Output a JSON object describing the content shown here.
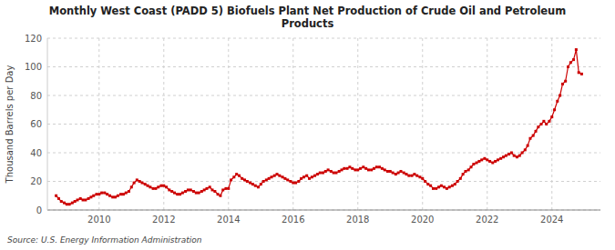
{
  "chart_data": {
    "type": "line",
    "title": "Monthly West Coast (PADD 5) Biofuels Plant Net Production of Crude Oil and Petroleum\nProducts",
    "y_label": "Thousand Barrels per Day",
    "annotations": [
      "Source: U.S. Energy Information Administration"
    ],
    "color": "#cc0000",
    "marker": "square",
    "line_style": "solid",
    "grid": true,
    "xlim": [
      2008.4,
      2025.5
    ],
    "xticks": [
      2010,
      2012,
      2014,
      2016,
      2018,
      2020,
      2022,
      2024
    ],
    "ylim": [
      0,
      120
    ],
    "yticks": [
      0,
      20,
      40,
      60,
      80,
      100,
      120
    ],
    "x": [
      2008.67,
      2008.75,
      2008.83,
      2008.92,
      2009.0,
      2009.08,
      2009.17,
      2009.25,
      2009.33,
      2009.42,
      2009.5,
      2009.58,
      2009.67,
      2009.75,
      2009.83,
      2009.92,
      2010.0,
      2010.08,
      2010.17,
      2010.25,
      2010.33,
      2010.42,
      2010.5,
      2010.58,
      2010.67,
      2010.75,
      2010.83,
      2010.92,
      2011.0,
      2011.08,
      2011.17,
      2011.25,
      2011.33,
      2011.42,
      2011.5,
      2011.58,
      2011.67,
      2011.75,
      2011.83,
      2011.92,
      2012.0,
      2012.08,
      2012.17,
      2012.25,
      2012.33,
      2012.42,
      2012.5,
      2012.58,
      2012.67,
      2012.75,
      2012.83,
      2012.92,
      2013.0,
      2013.08,
      2013.17,
      2013.25,
      2013.33,
      2013.42,
      2013.5,
      2013.58,
      2013.67,
      2013.75,
      2013.83,
      2013.92,
      2014.0,
      2014.08,
      2014.17,
      2014.25,
      2014.33,
      2014.42,
      2014.5,
      2014.58,
      2014.67,
      2014.75,
      2014.83,
      2014.92,
      2015.0,
      2015.08,
      2015.17,
      2015.25,
      2015.33,
      2015.42,
      2015.5,
      2015.58,
      2015.67,
      2015.75,
      2015.83,
      2015.92,
      2016.0,
      2016.08,
      2016.17,
      2016.25,
      2016.33,
      2016.42,
      2016.5,
      2016.58,
      2016.67,
      2016.75,
      2016.83,
      2016.92,
      2017.0,
      2017.08,
      2017.17,
      2017.25,
      2017.33,
      2017.42,
      2017.5,
      2017.58,
      2017.67,
      2017.75,
      2017.83,
      2017.92,
      2018.0,
      2018.08,
      2018.17,
      2018.25,
      2018.33,
      2018.42,
      2018.5,
      2018.58,
      2018.67,
      2018.75,
      2018.83,
      2018.92,
      2019.0,
      2019.08,
      2019.17,
      2019.25,
      2019.33,
      2019.42,
      2019.5,
      2019.58,
      2019.67,
      2019.75,
      2019.83,
      2019.92,
      2020.0,
      2020.08,
      2020.17,
      2020.25,
      2020.33,
      2020.42,
      2020.5,
      2020.58,
      2020.67,
      2020.75,
      2020.83,
      2020.92,
      2021.0,
      2021.08,
      2021.17,
      2021.25,
      2021.33,
      2021.42,
      2021.5,
      2021.58,
      2021.67,
      2021.75,
      2021.83,
      2021.92,
      2022.0,
      2022.08,
      2022.17,
      2022.25,
      2022.33,
      2022.42,
      2022.5,
      2022.58,
      2022.67,
      2022.75,
      2022.83,
      2022.92,
      2023.0,
      2023.08,
      2023.17,
      2023.25,
      2023.33,
      2023.42,
      2023.5,
      2023.58,
      2023.67,
      2023.75,
      2023.83,
      2023.92,
      2024.0,
      2024.08,
      2024.17,
      2024.25,
      2024.33,
      2024.42,
      2024.5,
      2024.58,
      2024.67,
      2024.75,
      2024.83,
      2024.92
    ],
    "values": [
      10,
      8,
      6,
      5,
      4,
      4,
      5,
      6,
      7,
      8,
      7,
      7,
      8,
      9,
      10,
      11,
      11,
      12,
      12,
      11,
      10,
      9,
      9,
      10,
      11,
      11,
      12,
      13,
      16,
      19,
      21,
      20,
      19,
      18,
      17,
      16,
      15,
      15,
      16,
      17,
      17,
      16,
      14,
      13,
      12,
      11,
      11,
      12,
      13,
      14,
      14,
      13,
      12,
      12,
      13,
      14,
      15,
      16,
      14,
      13,
      11,
      10,
      14,
      15,
      15,
      21,
      23,
      25,
      24,
      22,
      21,
      20,
      19,
      18,
      17,
      16,
      18,
      20,
      21,
      22,
      23,
      24,
      25,
      24,
      23,
      22,
      21,
      20,
      19,
      19,
      20,
      22,
      23,
      24,
      22,
      23,
      24,
      25,
      26,
      26,
      27,
      28,
      27,
      26,
      26,
      27,
      28,
      29,
      29,
      30,
      29,
      28,
      28,
      29,
      30,
      29,
      28,
      28,
      29,
      30,
      30,
      29,
      28,
      27,
      27,
      26,
      25,
      26,
      27,
      26,
      25,
      24,
      24,
      25,
      24,
      23,
      22,
      20,
      18,
      17,
      15,
      15,
      16,
      17,
      16,
      15,
      16,
      17,
      18,
      20,
      22,
      25,
      27,
      28,
      30,
      32,
      33,
      34,
      35,
      36,
      35,
      34,
      33,
      34,
      35,
      36,
      37,
      38,
      39,
      40,
      38,
      37,
      38,
      40,
      42,
      45,
      50,
      52,
      55,
      58,
      60,
      62,
      60,
      62,
      65,
      70,
      76,
      80,
      88,
      90,
      100,
      103,
      105,
      112,
      96,
      95
    ]
  }
}
